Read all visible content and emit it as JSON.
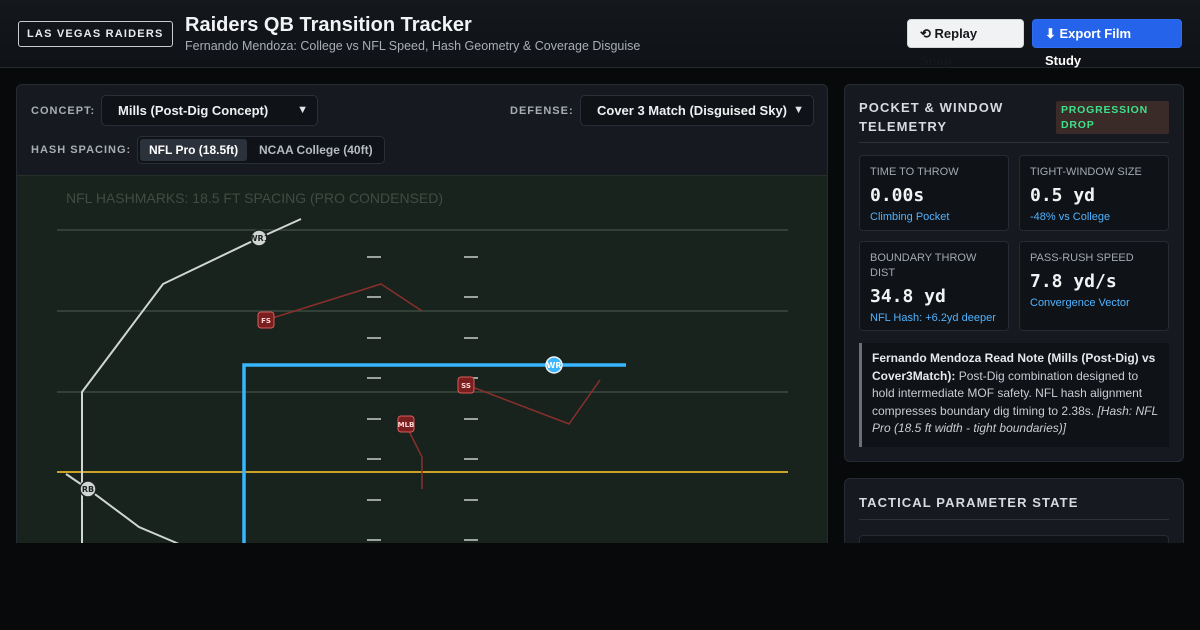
{
  "header": {
    "team_badge": "LAS VEGAS RAIDERS",
    "title": "Raiders QB Transition Tracker",
    "subtitle": "Fernando Mendoza: College vs NFL Speed, Hash Geometry & Coverage Disguise",
    "replay_label": "⟲ Replay Snap",
    "export_label": "⬇ Export Film Study"
  },
  "controls": {
    "concept_label": "CONCEPT:",
    "concept_value": "Mills (Post-Dig Concept)",
    "defense_label": "DEFENSE:",
    "defense_value": "Cover 3 Match (Disguised Sky)",
    "hash_label": "HASH SPACING:",
    "hash_options": [
      "NFL Pro (18.5ft)",
      "NCAA College (40ft)"
    ],
    "hash_selected": "NFL Pro (18.5ft)"
  },
  "field": {
    "caption": "NFL HASHMARKS: 18.5 FT SPACING (PRO CONDENSED)",
    "players": {
      "offense": [
        "WR1",
        "WR",
        "RB"
      ],
      "defense": [
        "FS",
        "SS",
        "MLB"
      ]
    },
    "colors": {
      "field": "#17231c",
      "yard_line": "#3c4a41",
      "line_of_scrimmage": "#c9a227",
      "primary_route": "#38b6ff",
      "secondary_route": "#cfd6d3",
      "defender_path": "#8a2f2b",
      "defender_fill": "#7a1f1f",
      "defender_stroke": "#e05a5a"
    }
  },
  "telemetry": {
    "title": "POCKET & WINDOW TELEMETRY",
    "badge": "PROGRESSION DROP",
    "cards": [
      {
        "label": "TIME TO THROW",
        "value": "0.00s",
        "sub": "Climbing Pocket"
      },
      {
        "label": "TIGHT-WINDOW SIZE",
        "value": "0.5 yd",
        "sub": "-48% vs College"
      },
      {
        "label": "BOUNDARY THROW DIST",
        "value": "34.8 yd",
        "sub": "NFL Hash: +6.2yd deeper"
      },
      {
        "label": "PASS-RUSH SPEED",
        "value": "7.8 yd/s",
        "sub": "Convergence Vector"
      }
    ],
    "note_bold": "Fernando Mendoza Read Note (Mills (Post-Dig) vs Cover3Match):",
    "note_text": " Post-Dig combination designed to hold intermediate MOF safety. NFL hash alignment compresses boundary dig timing to 2.38s. ",
    "note_italic": "[Hash: NFL Pro (18.5 ft width - tight boundaries)]"
  },
  "params": {
    "title": "TACTICAL PARAMETER STATE"
  }
}
